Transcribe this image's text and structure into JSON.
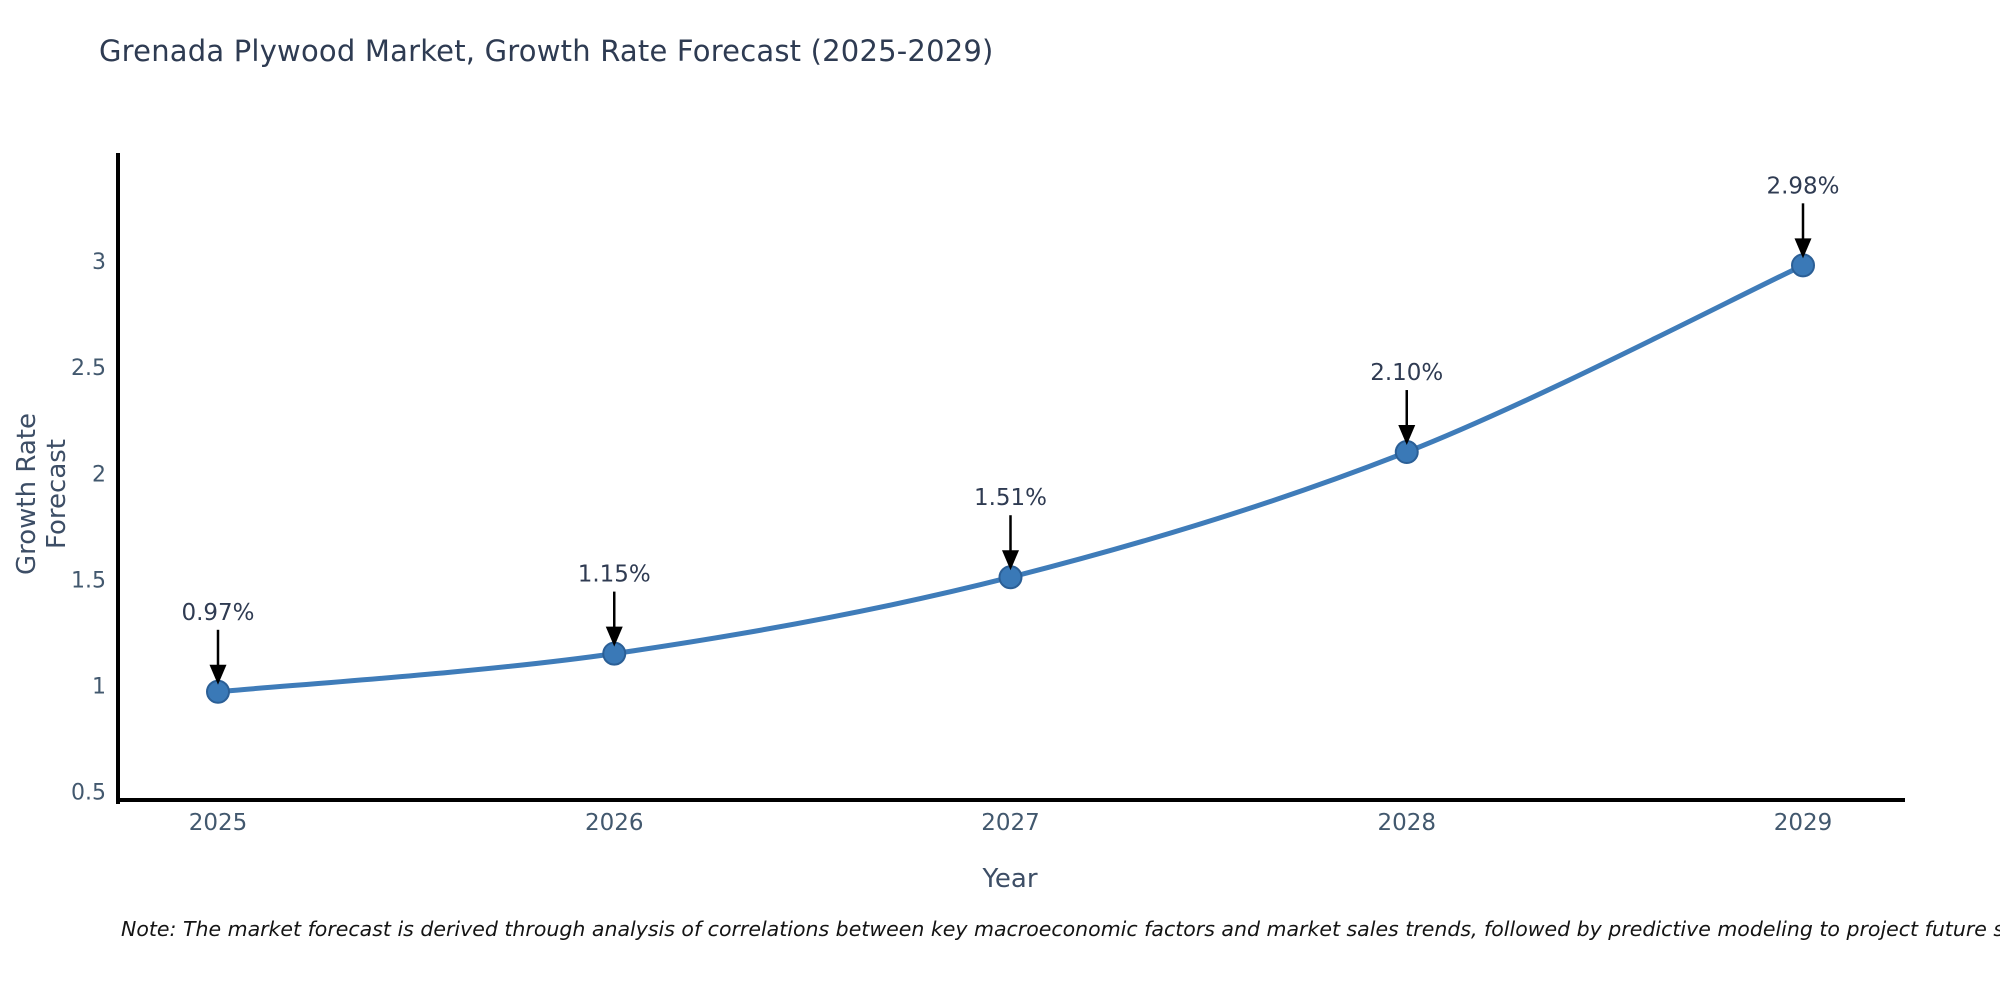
{
  "title": "Grenada Plywood Market, Growth Rate Forecast (2025-2029)",
  "note": "Note: The market forecast is derived through analysis of correlations between key macroeconomic factors and market sales trends, followed by predictive modeling to project future sales.",
  "chart_data": {
    "type": "line",
    "title": "Grenada Plywood Market, Growth Rate Forecast (2025-2029)",
    "xlabel": "Year",
    "ylabel": "Growth Rate Forecast",
    "categories": [
      "2025",
      "2026",
      "2027",
      "2028",
      "2029"
    ],
    "series": [
      {
        "name": "Growth Rate Forecast",
        "values": [
          0.97,
          1.15,
          1.51,
          2.1,
          2.98
        ]
      }
    ],
    "point_labels": [
      "0.97%",
      "1.15%",
      "1.51%",
      "2.10%",
      "2.98%"
    ],
    "yticks": [
      0.5,
      1,
      1.5,
      2,
      2.5,
      3
    ],
    "ytick_labels": [
      "0.5",
      "1",
      "1.5",
      "2",
      "2.5",
      "3"
    ],
    "ylim": [
      0.46,
      3.5
    ],
    "grid": false,
    "legend": "none",
    "annotation_arrows": true,
    "colors": {
      "line": "#3f7cb9",
      "marker_fill": "#3a79b7",
      "marker_edge": "#2b5f96",
      "axis": "#000000",
      "arrow": "#000000",
      "title_text": "#2e3b52",
      "axis_label_text": "#3d4e66",
      "tick_text": "#42586e",
      "annotation_text": "#2f3b52",
      "note_text": "#141414"
    }
  }
}
